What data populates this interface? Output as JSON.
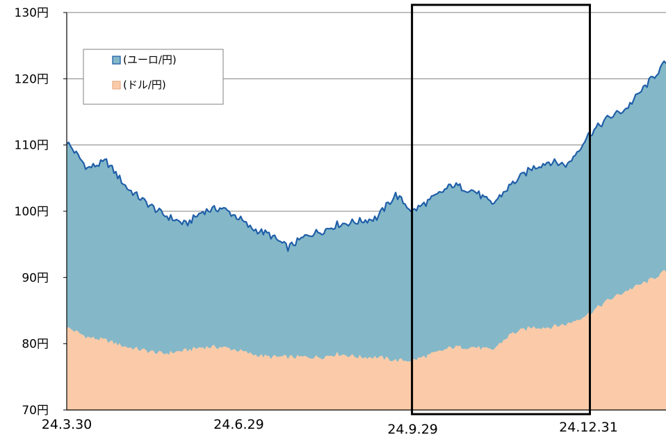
{
  "chart_data": {
    "type": "area",
    "y_axis": {
      "ylim": [
        70,
        130
      ],
      "ticks": [
        70,
        80,
        90,
        100,
        110,
        120,
        130
      ],
      "tick_labels": [
        "70円",
        "80円",
        "90円",
        "100円",
        "110円",
        "120円",
        "130円"
      ]
    },
    "x_axis": {
      "labels": [
        {
          "text": "24.3.30",
          "date": "1949-03-30"
        },
        {
          "text": "24.6.29",
          "date": "1949-06-29"
        },
        {
          "text": "24.9.29",
          "date": "1949-09-29"
        },
        {
          "text": "24.12.31",
          "date": "1949-12-31"
        }
      ],
      "xlim": [
        "1949-03-30",
        "1950-02-10"
      ]
    },
    "grid": {
      "horizontal": true,
      "values": [
        100,
        110,
        120,
        130
      ]
    },
    "legend": {
      "placement": "top-left",
      "entries": [
        "(ユーロ/円)",
        "(ドル/円)"
      ]
    },
    "highlight_box": {
      "from": "1949-09-29",
      "to": "1949-12-31"
    },
    "series": [
      {
        "name": "(ユーロ/円)",
        "color": "#84B8C8",
        "line_color": "#1f5ea8",
        "x": [
          "1949-03-30",
          "1949-04-10",
          "1949-04-20",
          "1949-05-01",
          "1949-05-10",
          "1949-05-20",
          "1949-06-01",
          "1949-06-10",
          "1949-06-20",
          "1949-06-29",
          "1949-07-05",
          "1949-07-15",
          "1949-07-25",
          "1949-08-05",
          "1949-08-12",
          "1949-08-20",
          "1949-09-01",
          "1949-09-10",
          "1949-09-20",
          "1949-09-29",
          "1949-10-10",
          "1949-10-20",
          "1949-11-01",
          "1949-11-10",
          "1949-11-20",
          "1949-12-01",
          "1949-12-10",
          "1949-12-20",
          "1949-12-31",
          "1950-01-10",
          "1950-01-20",
          "1950-02-01",
          "1950-02-10"
        ],
        "values": [
          110.5,
          106.5,
          107.5,
          103.5,
          101.5,
          99.5,
          98,
          100,
          100.5,
          99,
          97.5,
          96.5,
          94.5,
          96.5,
          97,
          98,
          98.5,
          99,
          102.5,
          100,
          102,
          104,
          103,
          101,
          104,
          106.5,
          107.5,
          107,
          111.5,
          114,
          115.5,
          119.5,
          122.5
        ]
      },
      {
        "name": "(ドル/円)",
        "color": "#FBCBA9",
        "x": [
          "1949-03-30",
          "1949-04-10",
          "1949-04-20",
          "1949-05-01",
          "1949-05-10",
          "1949-05-20",
          "1949-06-01",
          "1949-06-10",
          "1949-06-20",
          "1949-06-29",
          "1949-07-05",
          "1949-07-15",
          "1949-07-25",
          "1949-08-05",
          "1949-08-12",
          "1949-08-20",
          "1949-09-01",
          "1949-09-10",
          "1949-09-20",
          "1949-09-29",
          "1949-10-10",
          "1949-10-20",
          "1949-11-01",
          "1949-11-10",
          "1949-11-20",
          "1949-12-01",
          "1949-12-10",
          "1949-12-20",
          "1949-12-31",
          "1950-01-10",
          "1950-01-20",
          "1950-02-01",
          "1950-02-10"
        ],
        "values": [
          82.5,
          81,
          80.5,
          79.5,
          79,
          78.5,
          79,
          79.5,
          79.5,
          79,
          78.5,
          78,
          78,
          78,
          78,
          78.5,
          78,
          78,
          77.5,
          77.5,
          78.5,
          79.5,
          79.5,
          79,
          81.5,
          82.5,
          82.5,
          83,
          84.5,
          86.5,
          88,
          89.5,
          91
        ]
      }
    ]
  }
}
